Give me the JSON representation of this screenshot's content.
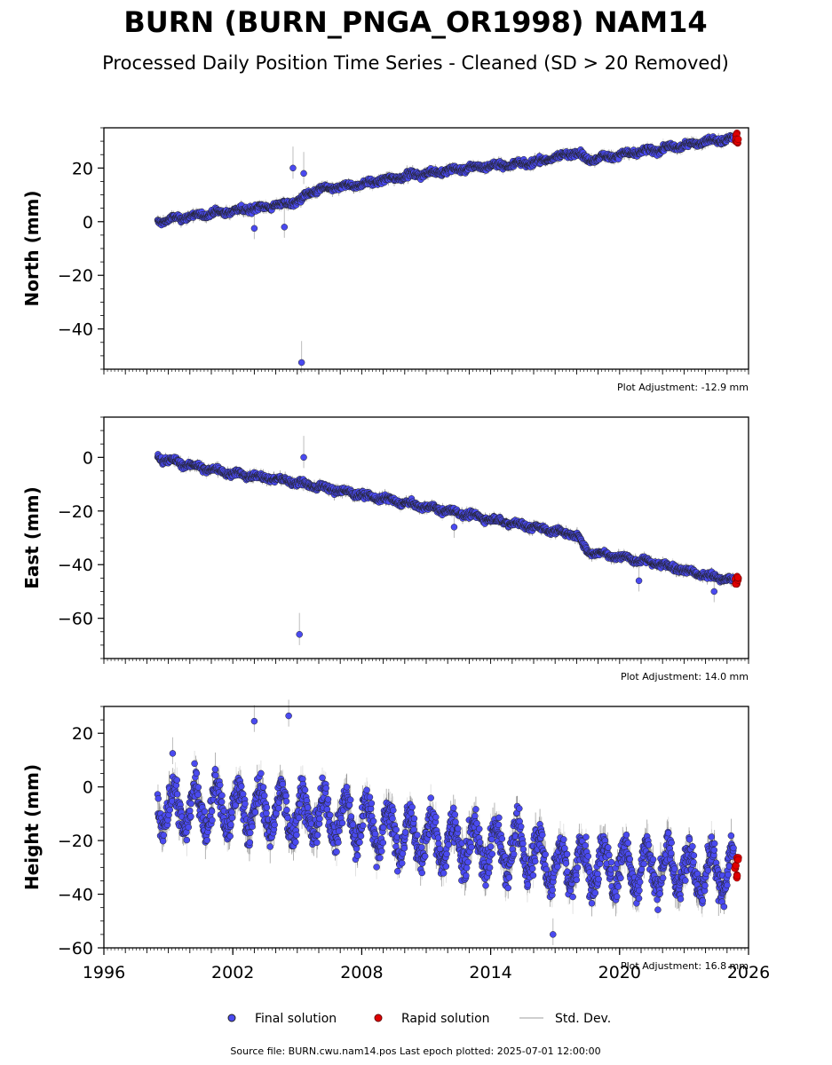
{
  "title": "BURN (BURN_PNGA_OR1998) NAM14",
  "subtitle": "Processed Daily Position Time Series - Cleaned (SD > 20 Removed)",
  "footer": "Source file: BURN.cwu.nam14.pos  Last epoch plotted: 2025-07-01 12:00:00",
  "legend": {
    "final": "Final solution",
    "rapid": "Rapid solution",
    "sd": "Std. Dev.",
    "placement": "bottom-center"
  },
  "colors": {
    "final": "#4a4af0",
    "rapid": "#e00000",
    "sd": "#bdbdbd",
    "marker_edge": "#222222"
  },
  "chart_data": [
    {
      "type": "scatter",
      "ylabel": "North (mm)",
      "adjustment": "Plot Adjustment: -12.9 mm",
      "xlim": [
        1996,
        2026
      ],
      "ylim": [
        -55,
        35
      ],
      "yticks": [
        20,
        0,
        -20,
        -40
      ],
      "ytick_labels": [
        "20",
        "0",
        "−20",
        "−40"
      ],
      "xtick_labels_visible": false,
      "series": [
        {
          "name": "Final solution",
          "x": [
            1998.5,
            2000,
            2002,
            2004,
            2005.2,
            2005.4,
            2006,
            2008,
            2010,
            2012,
            2014,
            2016,
            2018,
            2018.5,
            2020,
            2022,
            2024,
            2025.3
          ],
          "y": [
            0,
            2,
            4,
            6,
            8,
            10,
            12,
            14,
            17,
            19,
            21,
            22,
            26,
            23,
            25,
            27,
            30,
            31
          ]
        },
        {
          "name": "Rapid solution",
          "x": [
            2025.4,
            2025.45,
            2025.5
          ],
          "y": [
            31,
            32,
            30
          ]
        }
      ],
      "outliers": [
        {
          "x": 2005.2,
          "y": -52.5
        },
        {
          "x": 2004.8,
          "y": 20
        },
        {
          "x": 2005.3,
          "y": 18
        },
        {
          "x": 2003,
          "y": -2.5
        },
        {
          "x": 2004.4,
          "y": -2
        }
      ],
      "trend_break_year": 2018.6
    },
    {
      "type": "scatter",
      "ylabel": "East (mm)",
      "adjustment": "Plot Adjustment: 14.0 mm",
      "xlim": [
        1996,
        2026
      ],
      "ylim": [
        -75,
        15
      ],
      "yticks": [
        0,
        -20,
        -40,
        -60
      ],
      "ytick_labels": [
        "0",
        "−20",
        "−40",
        "−60"
      ],
      "xtick_labels_visible": false,
      "series": [
        {
          "name": "Final solution",
          "x": [
            1998.5,
            2000,
            2002,
            2004,
            2005.4,
            2006,
            2008,
            2010,
            2012,
            2014,
            2016,
            2018,
            2018.5,
            2020,
            2022,
            2024,
            2025.3
          ],
          "y": [
            0,
            -3,
            -6,
            -8,
            -10,
            -11,
            -14,
            -17,
            -20,
            -23,
            -26,
            -29,
            -35,
            -37,
            -40,
            -44,
            -46
          ]
        },
        {
          "name": "Rapid solution",
          "x": [
            2025.4,
            2025.45,
            2025.5
          ],
          "y": [
            -46,
            -47,
            -45
          ]
        }
      ],
      "outliers": [
        {
          "x": 2005.1,
          "y": -66
        },
        {
          "x": 2005.3,
          "y": 0
        },
        {
          "x": 2012.3,
          "y": -26
        },
        {
          "x": 2020.9,
          "y": -46
        },
        {
          "x": 2024.4,
          "y": -50
        }
      ],
      "trend_break_year": 2018.6
    },
    {
      "type": "scatter",
      "ylabel": "Height (mm)",
      "adjustment": "Plot Adjustment: 16.8 mm",
      "xlim": [
        1996,
        2026
      ],
      "ylim": [
        -60,
        30
      ],
      "yticks": [
        20,
        0,
        -20,
        -40,
        -60
      ],
      "ytick_labels": [
        "20",
        "0",
        "−20",
        "−40",
        "−60"
      ],
      "xticks": [
        1996,
        2002,
        2008,
        2014,
        2020,
        2026
      ],
      "xtick_labels": [
        "1996",
        "2002",
        "2008",
        "2014",
        "2020",
        "2026"
      ],
      "xtick_labels_visible": true,
      "series": [
        {
          "name": "Final solution",
          "x": [
            1998.5,
            2000,
            2002,
            2004,
            2006,
            2008,
            2010,
            2012,
            2014,
            2016,
            2017,
            2018,
            2020,
            2022,
            2024,
            2025.3
          ],
          "y": [
            -8,
            -8,
            -8,
            -9,
            -11,
            -13,
            -18,
            -21,
            -22,
            -24,
            -30,
            -29,
            -30,
            -30,
            -31,
            -32
          ]
        },
        {
          "name": "Rapid solution",
          "x": [
            2025.4,
            2025.45,
            2025.5
          ],
          "y": [
            -30,
            -33,
            -27
          ]
        }
      ],
      "outliers": [
        {
          "x": 2003,
          "y": 24.5
        },
        {
          "x": 2004.6,
          "y": 26.5
        },
        {
          "x": 2016.9,
          "y": -55
        },
        {
          "x": 1999.2,
          "y": 12.5
        }
      ],
      "seasonal_amplitude": 8,
      "scatter_sd": 6
    }
  ]
}
